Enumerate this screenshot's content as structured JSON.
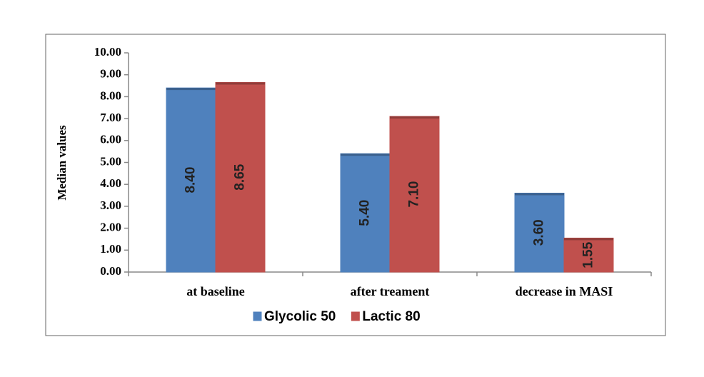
{
  "chart_data": {
    "type": "bar",
    "y_label": "Median values",
    "categories": [
      "at baseline",
      "after treament",
      "decrease in MASI"
    ],
    "series": [
      {
        "name": "Glycolic 50",
        "color": "#4f81bd",
        "values": [
          8.4,
          5.4,
          3.6
        ],
        "value_labels": [
          "8.40",
          "5.40",
          "3.60"
        ]
      },
      {
        "name": "Lactic 80",
        "color": "#c0504d",
        "values": [
          8.65,
          7.1,
          1.55
        ],
        "value_labels": [
          "8.65",
          "7.10",
          "1.55"
        ]
      }
    ],
    "ylim": [
      0,
      10
    ],
    "yticks": [
      {
        "value": 0,
        "label": "0.00"
      },
      {
        "value": 1,
        "label": "1.00"
      },
      {
        "value": 2,
        "label": "2.00"
      },
      {
        "value": 3,
        "label": "3.00"
      },
      {
        "value": 4,
        "label": "4.00"
      },
      {
        "value": 5,
        "label": "5.00"
      },
      {
        "value": 6,
        "label": "6.00"
      },
      {
        "value": 7,
        "label": "7.00"
      },
      {
        "value": 8,
        "label": "8.00"
      },
      {
        "value": 9,
        "label": "9.00"
      },
      {
        "value": 10,
        "label": "10.00"
      }
    ],
    "grid": false,
    "legend": "bottom"
  }
}
